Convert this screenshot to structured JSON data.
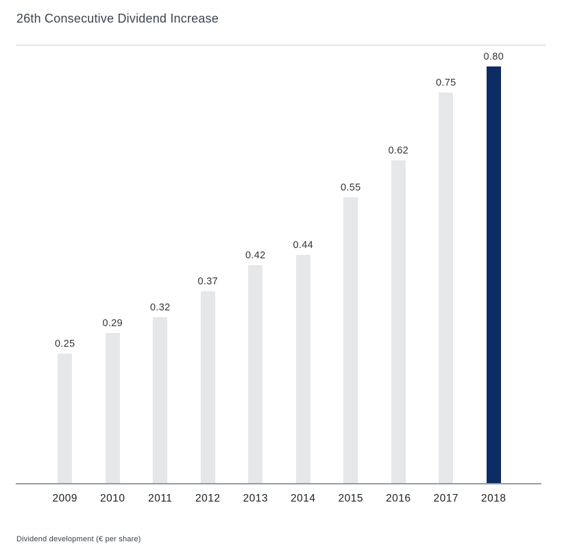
{
  "header": {
    "title": "26th Consecutive Dividend Increase"
  },
  "footer": {
    "caption": "Dividend development (€ per share)"
  },
  "chart_data": {
    "type": "bar",
    "title": "26th Consecutive Dividend Increase",
    "categories": [
      "2009",
      "2010",
      "2011",
      "2012",
      "2013",
      "2014",
      "2015",
      "2016",
      "2017",
      "2018"
    ],
    "values": [
      0.25,
      0.29,
      0.32,
      0.37,
      0.42,
      0.44,
      0.55,
      0.62,
      0.75,
      0.8
    ],
    "value_labels": [
      "0.25",
      "0.29",
      "0.32",
      "0.37",
      "0.42",
      "0.44",
      "0.55",
      "0.62",
      "0.75",
      "0.80"
    ],
    "xlabel": "",
    "ylabel": "",
    "ylim": [
      0,
      0.84
    ],
    "grid": false,
    "legend": false,
    "data_labels": "above-bars",
    "highlight_index": 9,
    "colors": {
      "bar_default": "#e4e8ea",
      "bar_highlight": "#0d2c64"
    },
    "caption": "Dividend development (€ per share)"
  }
}
